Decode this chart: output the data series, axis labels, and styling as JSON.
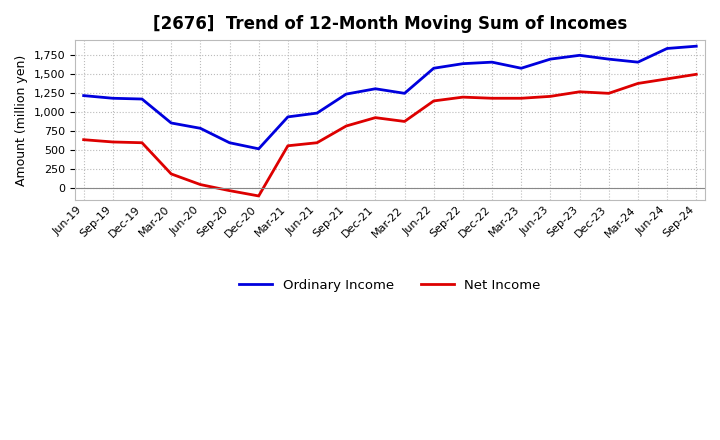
{
  "title": "[2676]  Trend of 12-Month Moving Sum of Incomes",
  "ylabel": "Amount (million yen)",
  "background_color": "#ffffff",
  "grid_color": "#bbbbbb",
  "x_labels": [
    "Jun-19",
    "Sep-19",
    "Dec-19",
    "Mar-20",
    "Jun-20",
    "Sep-20",
    "Dec-20",
    "Mar-21",
    "Jun-21",
    "Sep-21",
    "Dec-21",
    "Mar-22",
    "Jun-22",
    "Sep-22",
    "Dec-22",
    "Mar-23",
    "Jun-23",
    "Sep-23",
    "Dec-23",
    "Mar-24",
    "Jun-24",
    "Sep-24"
  ],
  "ordinary_income": [
    1220,
    1185,
    1175,
    860,
    790,
    600,
    520,
    940,
    990,
    1240,
    1310,
    1250,
    1580,
    1640,
    1660,
    1580,
    1700,
    1750,
    1700,
    1660,
    1840,
    1870
  ],
  "net_income": [
    640,
    610,
    600,
    190,
    50,
    -30,
    -100,
    560,
    600,
    820,
    930,
    880,
    1150,
    1200,
    1185,
    1185,
    1210,
    1270,
    1250,
    1380,
    1440,
    1500
  ],
  "ordinary_color": "#0000dd",
  "net_color": "#dd0000",
  "ylim_min": -150,
  "ylim_max": 1950,
  "yticks": [
    0,
    250,
    500,
    750,
    1000,
    1250,
    1500,
    1750
  ],
  "legend_ordinary": "Ordinary Income",
  "legend_net": "Net Income",
  "line_width": 2.0,
  "title_fontsize": 12,
  "tick_fontsize": 8,
  "ylabel_fontsize": 9
}
